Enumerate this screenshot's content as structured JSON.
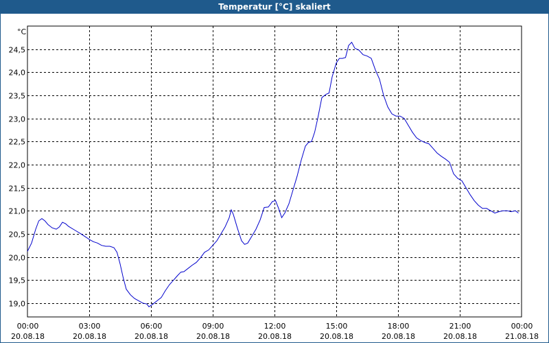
{
  "window": {
    "title": "Temperatur [°C] skaliert"
  },
  "chart_data": {
    "type": "line",
    "title": "Temperatur [°C] skaliert",
    "ylabel": "°C",
    "xlabel": "",
    "ylim": [
      18.7,
      25.0
    ],
    "grid": true,
    "x_ticks": [
      {
        "time": "00:00",
        "date": "20.08.18",
        "h": 0
      },
      {
        "time": "03:00",
        "date": "20.08.18",
        "h": 3
      },
      {
        "time": "06:00",
        "date": "20.08.18",
        "h": 6
      },
      {
        "time": "09:00",
        "date": "20.08.18",
        "h": 9
      },
      {
        "time": "12:00",
        "date": "20.08.18",
        "h": 12
      },
      {
        "time": "15:00",
        "date": "20.08.18",
        "h": 15
      },
      {
        "time": "18:00",
        "date": "20.08.18",
        "h": 18
      },
      {
        "time": "21:00",
        "date": "20.08.18",
        "h": 21
      },
      {
        "time": "00:00",
        "date": "21.08.18",
        "h": 24
      }
    ],
    "y_ticks": [
      {
        "label": "24,5",
        "v": 24.5
      },
      {
        "label": "24,0",
        "v": 24.0
      },
      {
        "label": "23,5",
        "v": 23.5
      },
      {
        "label": "23,0",
        "v": 23.0
      },
      {
        "label": "22,5",
        "v": 22.5
      },
      {
        "label": "22,0",
        "v": 22.0
      },
      {
        "label": "21,5",
        "v": 21.5
      },
      {
        "label": "21,0",
        "v": 21.0
      },
      {
        "label": "20,5",
        "v": 20.5
      },
      {
        "label": "20,0",
        "v": 20.0
      },
      {
        "label": "19,5",
        "v": 19.5
      },
      {
        "label": "19,0",
        "v": 19.0
      }
    ],
    "series": [
      {
        "color": "#0000cc",
        "points": [
          [
            0.0,
            20.12
          ],
          [
            0.2,
            20.3
          ],
          [
            0.4,
            20.6
          ],
          [
            0.55,
            20.78
          ],
          [
            0.7,
            20.83
          ],
          [
            0.85,
            20.78
          ],
          [
            1.0,
            20.7
          ],
          [
            1.2,
            20.63
          ],
          [
            1.4,
            20.6
          ],
          [
            1.55,
            20.65
          ],
          [
            1.7,
            20.75
          ],
          [
            1.85,
            20.72
          ],
          [
            2.0,
            20.66
          ],
          [
            2.3,
            20.58
          ],
          [
            2.6,
            20.5
          ],
          [
            2.8,
            20.44
          ],
          [
            3.0,
            20.38
          ],
          [
            3.2,
            20.33
          ],
          [
            3.4,
            20.3
          ],
          [
            3.6,
            20.25
          ],
          [
            3.8,
            20.23
          ],
          [
            4.0,
            20.23
          ],
          [
            4.2,
            20.2
          ],
          [
            4.35,
            20.1
          ],
          [
            4.5,
            19.85
          ],
          [
            4.65,
            19.55
          ],
          [
            4.8,
            19.3
          ],
          [
            5.0,
            19.18
          ],
          [
            5.2,
            19.1
          ],
          [
            5.4,
            19.05
          ],
          [
            5.6,
            19.0
          ],
          [
            5.8,
            18.98
          ],
          [
            5.9,
            18.92
          ],
          [
            6.0,
            18.95
          ],
          [
            6.1,
            18.98
          ],
          [
            6.3,
            19.05
          ],
          [
            6.5,
            19.12
          ],
          [
            6.7,
            19.27
          ],
          [
            6.9,
            19.4
          ],
          [
            7.1,
            19.5
          ],
          [
            7.3,
            19.6
          ],
          [
            7.45,
            19.67
          ],
          [
            7.6,
            19.68
          ],
          [
            7.8,
            19.75
          ],
          [
            8.0,
            19.82
          ],
          [
            8.2,
            19.88
          ],
          [
            8.4,
            19.98
          ],
          [
            8.6,
            20.1
          ],
          [
            8.8,
            20.15
          ],
          [
            9.0,
            20.25
          ],
          [
            9.2,
            20.35
          ],
          [
            9.4,
            20.5
          ],
          [
            9.6,
            20.65
          ],
          [
            9.8,
            20.85
          ],
          [
            9.9,
            21.02
          ],
          [
            10.0,
            20.92
          ],
          [
            10.2,
            20.62
          ],
          [
            10.4,
            20.35
          ],
          [
            10.55,
            20.27
          ],
          [
            10.7,
            20.3
          ],
          [
            10.9,
            20.45
          ],
          [
            11.1,
            20.6
          ],
          [
            11.3,
            20.8
          ],
          [
            11.5,
            21.07
          ],
          [
            11.7,
            21.08
          ],
          [
            11.9,
            21.2
          ],
          [
            12.05,
            21.22
          ],
          [
            12.2,
            21.05
          ],
          [
            12.35,
            20.85
          ],
          [
            12.5,
            20.95
          ],
          [
            12.7,
            21.15
          ],
          [
            12.9,
            21.45
          ],
          [
            13.1,
            21.75
          ],
          [
            13.3,
            22.1
          ],
          [
            13.5,
            22.4
          ],
          [
            13.65,
            22.48
          ],
          [
            13.8,
            22.5
          ],
          [
            13.95,
            22.7
          ],
          [
            14.1,
            23.0
          ],
          [
            14.3,
            23.45
          ],
          [
            14.5,
            23.52
          ],
          [
            14.65,
            23.55
          ],
          [
            14.8,
            23.9
          ],
          [
            15.0,
            24.2
          ],
          [
            15.15,
            24.3
          ],
          [
            15.3,
            24.3
          ],
          [
            15.45,
            24.32
          ],
          [
            15.6,
            24.58
          ],
          [
            15.75,
            24.65
          ],
          [
            15.9,
            24.52
          ],
          [
            16.1,
            24.48
          ],
          [
            16.3,
            24.38
          ],
          [
            16.5,
            24.35
          ],
          [
            16.7,
            24.3
          ],
          [
            16.9,
            24.05
          ],
          [
            17.1,
            23.85
          ],
          [
            17.3,
            23.5
          ],
          [
            17.5,
            23.25
          ],
          [
            17.7,
            23.1
          ],
          [
            17.9,
            23.05
          ],
          [
            18.1,
            23.05
          ],
          [
            18.3,
            23.0
          ],
          [
            18.5,
            22.85
          ],
          [
            18.7,
            22.7
          ],
          [
            18.9,
            22.58
          ],
          [
            19.1,
            22.52
          ],
          [
            19.3,
            22.48
          ],
          [
            19.5,
            22.45
          ],
          [
            19.7,
            22.35
          ],
          [
            19.9,
            22.25
          ],
          [
            20.1,
            22.18
          ],
          [
            20.3,
            22.12
          ],
          [
            20.5,
            22.05
          ],
          [
            20.7,
            21.8
          ],
          [
            20.9,
            21.7
          ],
          [
            21.1,
            21.65
          ],
          [
            21.3,
            21.5
          ],
          [
            21.5,
            21.35
          ],
          [
            21.7,
            21.22
          ],
          [
            21.9,
            21.12
          ],
          [
            22.1,
            21.05
          ],
          [
            22.3,
            21.05
          ],
          [
            22.5,
            21.0
          ],
          [
            22.7,
            20.95
          ],
          [
            22.9,
            20.98
          ],
          [
            23.1,
            21.0
          ],
          [
            23.3,
            21.0
          ],
          [
            23.5,
            20.98
          ],
          [
            23.7,
            21.0
          ],
          [
            23.85,
            20.95
          ]
        ]
      }
    ]
  }
}
